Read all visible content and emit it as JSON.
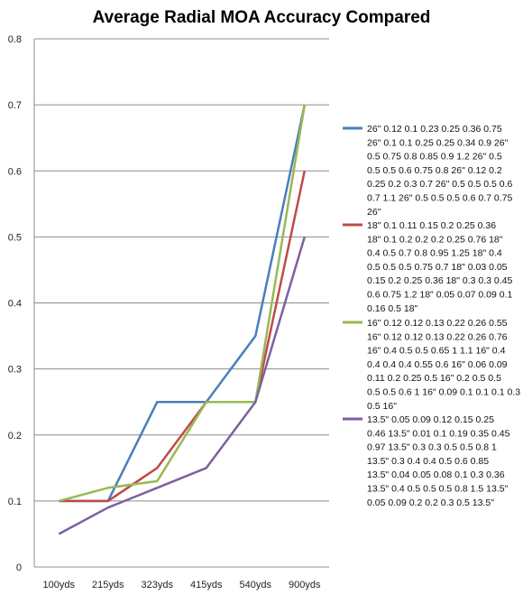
{
  "chart_data": {
    "type": "line",
    "title": "Average Radial MOA Accuracy Compared",
    "categories": [
      "100yds",
      "215yds",
      "323yds",
      "415yds",
      "540yds",
      "900yds"
    ],
    "ylim": [
      0,
      0.8
    ],
    "yticks": [
      "0",
      "0.1",
      "0.2",
      "0.3",
      "0.4",
      "0.5",
      "0.6",
      "0.7",
      "0.8"
    ],
    "grid": true,
    "legend_position": "right",
    "series": [
      {
        "name": "26\" 0.12 0.1 0.23 0.25 0.36 0.75 26\" 0.1 0.1 0.25 0.25 0.34 0.9 26\" 0.5 0.75 0.8 0.85 0.9 1.2 26\" 0.5 0.5 0.5 0.6 0.75 0.8 26\" 0.12 0.2 0.25 0.2 0.3 0.7 26\" 0.5 0.5 0.5 0.6 0.7 1.1 26\" 0.5 0.5 0.5 0.6 0.7 0.75 26\"",
        "legend_lines": [
          "26\" 0.12 0.1 0.23 0.25 0.36 0.75",
          "26\" 0.1 0.1 0.25 0.25 0.34 0.9 26\"",
          "0.5 0.75 0.8 0.85 0.9 1.2 26\" 0.5",
          "0.5 0.5 0.6 0.75 0.8 26\" 0.12 0.2",
          "0.25 0.2 0.3 0.7 26\" 0.5 0.5 0.5 0.6",
          "0.7 1.1 26\" 0.5 0.5 0.5 0.6 0.7 0.75",
          "26\""
        ],
        "color": "#4a7ebb",
        "values": [
          0.1,
          0.1,
          0.25,
          0.25,
          0.35,
          0.7
        ]
      },
      {
        "name": "18\" 0.1 0.11 0.15 0.2 0.25 0.36 18\" 0.1 0.2 0.2 0.2 0.25 0.76 18\" 0.4 0.5 0.7 0.8 0.95 1.25 18\" 0.4 0.5 0.5 0.5 0.75 0.7 18\" 0.03 0.05 0.15 0.2 0.25 0.36 18\" 0.3 0.3 0.45 0.6 0.75 1.2 18\" 0.05 0.07 0.09 0.1 0.16 0.5 18\"",
        "legend_lines": [
          "18\" 0.1 0.11 0.15 0.2 0.25 0.36",
          "18\" 0.1 0.2 0.2 0.2 0.25 0.76 18\"",
          "0.4 0.5 0.7 0.8 0.95 1.25 18\" 0.4",
          "0.5 0.5 0.5 0.75 0.7 18\" 0.03 0.05",
          "0.15 0.2 0.25 0.36 18\" 0.3 0.3 0.45",
          "0.6 0.75 1.2 18\" 0.05 0.07 0.09 0.1",
          "0.16 0.5 18\""
        ],
        "color": "#be4b48",
        "values": [
          0.1,
          0.1,
          0.15,
          0.25,
          0.25,
          0.6
        ]
      },
      {
        "name": "16\" 0.12 0.12 0.13 0.22 0.26 0.55 16\" 0.12 0.12 0.13 0.22 0.26 0.76 16\" 0.4 0.5 0.5 0.65 1 1.1 16\" 0.4 0.4 0.4 0.4 0.55 0.6 16\" 0.06 0.09 0.11 0.2 0.25 0.5 16\" 0.2 0.5 0.5 0.5 0.5 0.6 1 16\" 0.09 0.1 0.1 0.1 0.3 0.5 16\"",
        "legend_lines": [
          "16\" 0.12 0.12 0.13 0.22 0.26 0.55",
          "16\" 0.12 0.12 0.13 0.22 0.26 0.76",
          "16\" 0.4 0.5 0.5 0.65 1 1.1 16\" 0.4",
          "0.4 0.4 0.4 0.55 0.6 16\" 0.06 0.09",
          "0.11 0.2 0.25 0.5 16\" 0.2 0.5 0.5",
          "0.5 0.5 0.6 1 16\" 0.09 0.1 0.1 0.1 0.3",
          "0.5 16\""
        ],
        "color": "#98b954",
        "values": [
          0.1,
          0.12,
          0.13,
          0.25,
          0.25,
          0.7
        ]
      },
      {
        "name": "13.5\" 0.05 0.09 0.12 0.15 0.25 0.46 13.5\" 0.01 0.1 0.19 0.35 0.45 0.97 13.5\" 0.3 0.3 0.5 0.5 0.8 1 13.5\" 0.3 0.4 0.4 0.5 0.6 0.85 13.5\" 0.04 0.05 0.08 0.1 0.3 0.36 13.5\" 0.4 0.5 0.5 0.5 0.8 1.5 13.5\" 0.05 0.09 0.2 0.2 0.3 0.5 13.5\"",
        "legend_lines": [
          "13.5\" 0.05 0.09 0.12 0.15 0.25",
          "0.46 13.5\" 0.01 0.1 0.19 0.35 0.45",
          "0.97 13.5\" 0.3 0.3 0.5 0.5 0.8 1",
          "13.5\" 0.3 0.4 0.4 0.5 0.6 0.85",
          "13.5\" 0.04 0.05 0.08 0.1 0.3 0.36",
          "13.5\" 0.4 0.5 0.5 0.5 0.8 1.5 13.5\"",
          "0.05 0.09 0.2 0.2 0.3 0.5 13.5\""
        ],
        "color": "#7d60a0",
        "values": [
          0.05,
          0.09,
          0.12,
          0.15,
          0.25,
          0.5
        ]
      }
    ]
  }
}
